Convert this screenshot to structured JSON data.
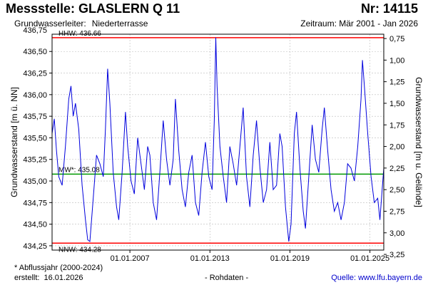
{
  "header": {
    "title": "Messstelle: GLASLERN Q 11",
    "number": "Nr: 14115",
    "aquifer_label": "Grundwasserleiter:",
    "aquifer_value": "Niederterrasse",
    "period": "Zeitraum: Mär 2001 - Jan 2026"
  },
  "footer": {
    "footnote": "* Abflussjahr (2000-2024)",
    "created_label": "erstellt:",
    "created_date": "16.01.2026",
    "raw": "- Rohdaten -",
    "source": "Quelle: www.lfu.bayern.de"
  },
  "colors": {
    "series": "#0000dd",
    "hhw": "#ff0000",
    "nnw": "#ff0000",
    "mw": "#009900",
    "grid": "#bbbbbb"
  },
  "chart_data": {
    "type": "line",
    "ylabel": "Grundwasserstand [m ü. NN]",
    "y2label": "Grundwasserstand [m u. Gelände]",
    "ylim": [
      434.2,
      436.7
    ],
    "yticks": [
      434.25,
      434.5,
      434.75,
      435.0,
      435.25,
      435.5,
      435.75,
      436.0,
      436.25,
      436.5,
      436.75
    ],
    "ytick_labels": [
      "434,25",
      "434,50",
      "434,75",
      "435,00",
      "435,25",
      "435,50",
      "435,75",
      "436,00",
      "436,25",
      "436,50",
      "436,75"
    ],
    "y2ticks": [
      0.75,
      1.0,
      1.25,
      1.5,
      1.75,
      2.0,
      2.25,
      2.5,
      2.75,
      3.0,
      3.25
    ],
    "y2tick_labels": [
      "0,75",
      "1,00",
      "1,25",
      "1,50",
      "1,75",
      "2,00",
      "2,25",
      "2,50",
      "2,75",
      "3,00",
      "3,25"
    ],
    "ground_level": 437.4,
    "xlim": [
      "2001-03-01",
      "2026-01-15"
    ],
    "xticks": [
      "2007-01-01",
      "2013-01-01",
      "2019-01-01",
      "2025-01-01"
    ],
    "xtick_labels": [
      "01.01.2007",
      "01.01.2013",
      "01.01.2019",
      "01.01.2025"
    ],
    "grid": true,
    "reference_lines": [
      {
        "name": "HHW",
        "label": "HHW: 436.66",
        "value": 436.66,
        "color": "#ff0000"
      },
      {
        "name": "MW",
        "label": "MW*: 435.08",
        "value": 435.08,
        "color": "#009900"
      },
      {
        "name": "NNW",
        "label": "NNW: 434.28",
        "value": 434.28,
        "color": "#ff0000"
      }
    ],
    "series": [
      {
        "color": "#0000dd",
        "points": [
          [
            "2001-03-01",
            435.55
          ],
          [
            "2001-05-01",
            435.72
          ],
          [
            "2001-07-01",
            435.35
          ],
          [
            "2001-09-01",
            435.05
          ],
          [
            "2001-12-01",
            434.95
          ],
          [
            "2002-03-01",
            435.4
          ],
          [
            "2002-06-01",
            435.95
          ],
          [
            "2002-08-01",
            436.1
          ],
          [
            "2002-10-01",
            435.75
          ],
          [
            "2002-12-01",
            435.9
          ],
          [
            "2003-03-01",
            435.6
          ],
          [
            "2003-06-01",
            434.95
          ],
          [
            "2003-09-01",
            434.55
          ],
          [
            "2003-11-01",
            434.32
          ],
          [
            "2004-01-01",
            434.3
          ],
          [
            "2004-04-01",
            434.8
          ],
          [
            "2004-07-01",
            435.3
          ],
          [
            "2004-10-01",
            435.2
          ],
          [
            "2005-01-01",
            435.05
          ],
          [
            "2005-03-01",
            435.6
          ],
          [
            "2005-05-01",
            436.3
          ],
          [
            "2005-07-01",
            435.9
          ],
          [
            "2005-10-01",
            435.1
          ],
          [
            "2006-01-01",
            434.7
          ],
          [
            "2006-03-01",
            434.55
          ],
          [
            "2006-06-01",
            435.1
          ],
          [
            "2006-09-01",
            435.8
          ],
          [
            "2006-11-01",
            435.4
          ],
          [
            "2007-02-01",
            435.0
          ],
          [
            "2007-05-01",
            434.85
          ],
          [
            "2007-08-01",
            435.5
          ],
          [
            "2007-11-01",
            435.2
          ],
          [
            "2008-02-01",
            434.9
          ],
          [
            "2008-05-01",
            435.4
          ],
          [
            "2008-07-01",
            435.3
          ],
          [
            "2008-10-01",
            434.75
          ],
          [
            "2009-01-01",
            434.55
          ],
          [
            "2009-04-01",
            435.1
          ],
          [
            "2009-07-01",
            435.7
          ],
          [
            "2009-10-01",
            435.25
          ],
          [
            "2010-01-01",
            434.95
          ],
          [
            "2010-04-01",
            435.25
          ],
          [
            "2010-06-01",
            435.95
          ],
          [
            "2010-09-01",
            435.35
          ],
          [
            "2010-12-01",
            434.9
          ],
          [
            "2011-03-01",
            434.7
          ],
          [
            "2011-06-01",
            435.1
          ],
          [
            "2011-09-01",
            435.3
          ],
          [
            "2011-12-01",
            434.75
          ],
          [
            "2012-03-01",
            434.6
          ],
          [
            "2012-06-01",
            435.1
          ],
          [
            "2012-09-01",
            435.45
          ],
          [
            "2012-12-01",
            435.05
          ],
          [
            "2013-03-01",
            434.9
          ],
          [
            "2013-05-01",
            435.7
          ],
          [
            "2013-06-10",
            436.66
          ],
          [
            "2013-07-15",
            436.1
          ],
          [
            "2013-10-01",
            435.4
          ],
          [
            "2014-01-01",
            435.05
          ],
          [
            "2014-04-01",
            434.75
          ],
          [
            "2014-07-01",
            435.4
          ],
          [
            "2014-10-01",
            435.2
          ],
          [
            "2015-01-01",
            434.95
          ],
          [
            "2015-04-01",
            435.4
          ],
          [
            "2015-07-01",
            435.85
          ],
          [
            "2015-10-01",
            435.05
          ],
          [
            "2016-01-01",
            434.7
          ],
          [
            "2016-04-01",
            435.3
          ],
          [
            "2016-07-01",
            435.7
          ],
          [
            "2016-10-01",
            435.15
          ],
          [
            "2017-01-01",
            434.75
          ],
          [
            "2017-04-01",
            434.9
          ],
          [
            "2017-07-01",
            435.45
          ],
          [
            "2017-10-01",
            434.9
          ],
          [
            "2018-01-01",
            434.95
          ],
          [
            "2018-04-01",
            435.55
          ],
          [
            "2018-06-01",
            435.4
          ],
          [
            "2018-09-01",
            434.7
          ],
          [
            "2018-12-01",
            434.3
          ],
          [
            "2019-02-01",
            434.5
          ],
          [
            "2019-05-01",
            435.55
          ],
          [
            "2019-07-01",
            435.8
          ],
          [
            "2019-10-01",
            435.15
          ],
          [
            "2020-01-01",
            434.65
          ],
          [
            "2020-03-01",
            434.45
          ],
          [
            "2020-06-01",
            435.05
          ],
          [
            "2020-09-01",
            435.65
          ],
          [
            "2020-12-01",
            435.25
          ],
          [
            "2021-03-01",
            435.1
          ],
          [
            "2021-06-01",
            435.6
          ],
          [
            "2021-08-01",
            435.85
          ],
          [
            "2021-11-01",
            435.35
          ],
          [
            "2022-02-01",
            434.9
          ],
          [
            "2022-05-01",
            434.65
          ],
          [
            "2022-08-01",
            434.75
          ],
          [
            "2022-11-01",
            434.55
          ],
          [
            "2023-02-01",
            434.75
          ],
          [
            "2023-05-01",
            435.2
          ],
          [
            "2023-08-01",
            435.15
          ],
          [
            "2023-11-01",
            435.0
          ],
          [
            "2024-02-01",
            435.4
          ],
          [
            "2024-05-01",
            435.95
          ],
          [
            "2024-06-10",
            436.4
          ],
          [
            "2024-08-01",
            436.1
          ],
          [
            "2024-11-01",
            435.55
          ],
          [
            "2025-02-01",
            435.05
          ],
          [
            "2025-05-01",
            434.75
          ],
          [
            "2025-08-01",
            434.8
          ],
          [
            "2025-10-01",
            434.55
          ],
          [
            "2025-12-01",
            434.9
          ],
          [
            "2026-01-15",
            435.15
          ]
        ]
      }
    ]
  }
}
